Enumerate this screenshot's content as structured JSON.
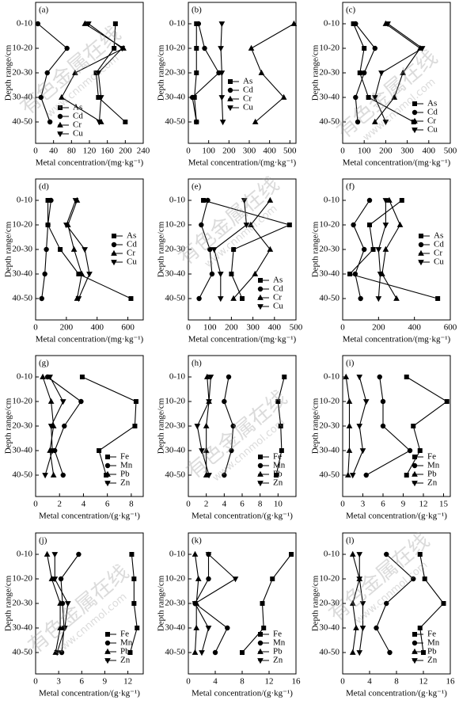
{
  "watermark": [
    "有色金属在线",
    "www.cnnmol.com"
  ],
  "chart_data": [
    {
      "type": "line",
      "panel": "(a)",
      "ylabel": "Depth range/cm",
      "xlabel": "Metal concentration/(mg·kg⁻¹)",
      "color": "#000000",
      "legend": "lower center",
      "categories": [
        "0-10",
        "10-20",
        "20-30",
        "30-40",
        "40-50"
      ],
      "xlim": [
        0,
        240
      ],
      "xticks": [
        0,
        40,
        80,
        120,
        160,
        200,
        240
      ],
      "series": [
        {
          "name": "As",
          "marker": "square",
          "values": [
            178,
            175,
            135,
            140,
            200
          ]
        },
        {
          "name": "Cd",
          "marker": "circle",
          "values": [
            5,
            70,
            26,
            12,
            32
          ]
        },
        {
          "name": "Cr",
          "marker": "triangle-up",
          "values": [
            110,
            196,
            88,
            58,
            146
          ]
        },
        {
          "name": "Cu",
          "marker": "triangle-down",
          "values": [
            118,
            193,
            140,
            146,
            142
          ]
        }
      ]
    },
    {
      "type": "line",
      "panel": "(b)",
      "ylabel": "Depth range/cm",
      "xlabel": "Metal concentration/(mg·kg⁻¹)",
      "color": "#000000",
      "legend": "center",
      "categories": [
        "0-10",
        "10-20",
        "20-30",
        "30-40",
        "40-50"
      ],
      "xlim": [
        0,
        530
      ],
      "xticks": [
        0,
        100,
        200,
        300,
        400,
        500
      ],
      "series": [
        {
          "name": "As",
          "marker": "square",
          "values": [
            40,
            40,
            40,
            30,
            40
          ]
        },
        {
          "name": "Cd",
          "marker": "circle",
          "values": [
            50,
            80,
            150,
            20,
            40
          ]
        },
        {
          "name": "Cr",
          "marker": "triangle-up",
          "values": [
            520,
            310,
            360,
            470,
            330
          ]
        },
        {
          "name": "Cu",
          "marker": "triangle-down",
          "values": [
            165,
            160,
            165,
            165,
            170
          ]
        }
      ]
    },
    {
      "type": "line",
      "panel": "(c)",
      "ylabel": "Depth range/cm",
      "xlabel": "Metal concentration/(mg·kg⁻¹)",
      "color": "#000000",
      "legend": "lower right",
      "categories": [
        "0-10",
        "10-20",
        "20-30",
        "30-40",
        "40-50"
      ],
      "xlim": [
        0,
        500
      ],
      "xticks": [
        0,
        100,
        200,
        300,
        400,
        500
      ],
      "series": [
        {
          "name": "As",
          "marker": "square",
          "values": [
            50,
            100,
            80,
            120,
            330
          ]
        },
        {
          "name": "Cd",
          "marker": "circle",
          "values": [
            60,
            150,
            100,
            60,
            70
          ]
        },
        {
          "name": "Cr",
          "marker": "triangle-up",
          "values": [
            200,
            360,
            280,
            240,
            150
          ]
        },
        {
          "name": "Cu",
          "marker": "triangle-down",
          "values": [
            210,
            370,
            180,
            150,
            200
          ]
        }
      ]
    },
    {
      "type": "line",
      "panel": "(d)",
      "ylabel": "Depth range/cm",
      "xlabel": "Metal concentration/(mg·kg⁻¹)",
      "color": "#000000",
      "legend": "center right",
      "categories": [
        "0-10",
        "10-20",
        "20-30",
        "30-40",
        "40-50"
      ],
      "xlim": [
        0,
        700
      ],
      "xticks": [
        0,
        200,
        400,
        600
      ],
      "series": [
        {
          "name": "As",
          "marker": "square",
          "values": [
            80,
            80,
            160,
            280,
            620
          ]
        },
        {
          "name": "Cd",
          "marker": "circle",
          "values": [
            100,
            80,
            70,
            60,
            40
          ]
        },
        {
          "name": "Cr",
          "marker": "triangle-up",
          "values": [
            270,
            210,
            250,
            300,
            270
          ]
        },
        {
          "name": "Cu",
          "marker": "triangle-down",
          "values": [
            260,
            200,
            320,
            350,
            280
          ]
        }
      ]
    },
    {
      "type": "line",
      "panel": "(e)",
      "ylabel": "Depth range/cm",
      "xlabel": "Metal concentration/(mg·kg⁻¹)",
      "color": "#000000",
      "legend": "lower right",
      "categories": [
        "0-10",
        "10-20",
        "20-30",
        "30-40",
        "40-50"
      ],
      "xlim": [
        0,
        500
      ],
      "xticks": [
        0,
        100,
        200,
        300,
        400,
        500
      ],
      "series": [
        {
          "name": "As",
          "marker": "square",
          "values": [
            70,
            470,
            210,
            200,
            250
          ]
        },
        {
          "name": "Cd",
          "marker": "circle",
          "values": [
            90,
            60,
            100,
            110,
            50
          ]
        },
        {
          "name": "Cr",
          "marker": "triangle-up",
          "values": [
            380,
            290,
            380,
            310,
            210
          ]
        },
        {
          "name": "Cu",
          "marker": "triangle-down",
          "values": [
            260,
            270,
            120,
            150,
            150
          ]
        }
      ]
    },
    {
      "type": "line",
      "panel": "(f)",
      "ylabel": "Depth range/cm",
      "xlabel": "Metal concentration/(mg·kg⁻¹)",
      "color": "#000000",
      "legend": "center right",
      "categories": [
        "0-10",
        "10-20",
        "20-30",
        "30-40",
        "40-50"
      ],
      "xlim": [
        0,
        600
      ],
      "xticks": [
        0,
        200,
        400,
        600
      ],
      "series": [
        {
          "name": "As",
          "marker": "square",
          "values": [
            330,
            150,
            170,
            40,
            530
          ]
        },
        {
          "name": "Cd",
          "marker": "circle",
          "values": [
            150,
            60,
            120,
            70,
            100
          ]
        },
        {
          "name": "Cr",
          "marker": "triangle-up",
          "values": [
            260,
            320,
            240,
            220,
            300
          ]
        },
        {
          "name": "Cu",
          "marker": "triangle-down",
          "values": [
            240,
            240,
            200,
            210,
            200
          ]
        }
      ]
    },
    {
      "type": "line",
      "panel": "(g)",
      "ylabel": "Depth range/cm",
      "xlabel": "Metal concentration/(g·kg⁻¹)",
      "color": "#000000",
      "legend": "lower right",
      "categories": [
        "0-10",
        "10-20",
        "20-30",
        "30-40",
        "40-50"
      ],
      "xlim": [
        0,
        9
      ],
      "xticks": [
        0,
        2,
        4,
        6,
        8
      ],
      "series": [
        {
          "name": "Fe",
          "marker": "square",
          "values": [
            3.9,
            8.4,
            8.3,
            5.3,
            5.9
          ]
        },
        {
          "name": "Mn",
          "marker": "circle",
          "values": [
            1.0,
            3.8,
            2.4,
            1.6,
            2.3
          ]
        },
        {
          "name": "Pb",
          "marker": "triangle-up",
          "values": [
            0.6,
            1.3,
            1.5,
            1.2,
            1.5
          ]
        },
        {
          "name": "Zn",
          "marker": "triangle-down",
          "values": [
            1.2,
            2.3,
            1.3,
            1.4,
            0.8
          ]
        }
      ]
    },
    {
      "type": "line",
      "panel": "(h)",
      "ylabel": "Depth range/cm",
      "xlabel": "Metal concentration/(g·kg⁻¹)",
      "color": "#000000",
      "legend": "lower right",
      "categories": [
        "0-10",
        "10-20",
        "20-30",
        "30-40",
        "40-50"
      ],
      "xlim": [
        0,
        12
      ],
      "xticks": [
        0,
        2,
        4,
        6,
        8,
        10
      ],
      "series": [
        {
          "name": "Fe",
          "marker": "square",
          "values": [
            10.7,
            10,
            10.3,
            10.4,
            9.8
          ]
        },
        {
          "name": "Mn",
          "marker": "circle",
          "values": [
            4.5,
            4,
            5,
            4.8,
            4
          ]
        },
        {
          "name": "Pb",
          "marker": "triangle-up",
          "values": [
            2.1,
            2.3,
            2,
            2,
            2
          ]
        },
        {
          "name": "Zn",
          "marker": "triangle-down",
          "values": [
            2.5,
            2.3,
            1,
            1.5,
            2.3
          ]
        }
      ]
    },
    {
      "type": "line",
      "panel": "(i)",
      "ylabel": "Depth range/cm",
      "xlabel": "Metal concentration/(g·kg⁻¹)",
      "color": "#000000",
      "legend": "lower right",
      "categories": [
        "0-10",
        "10-20",
        "20-30",
        "30-40",
        "40-50"
      ],
      "xlim": [
        0,
        16
      ],
      "xticks": [
        0,
        3,
        6,
        9,
        12,
        15
      ],
      "series": [
        {
          "name": "Fe",
          "marker": "square",
          "values": [
            9.5,
            15.5,
            10.5,
            11.5,
            9.5
          ]
        },
        {
          "name": "Mn",
          "marker": "circle",
          "values": [
            5.5,
            6,
            6,
            10,
            3.5
          ]
        },
        {
          "name": "Pb",
          "marker": "triangle-up",
          "values": [
            0.5,
            1,
            1,
            1,
            0.8
          ]
        },
        {
          "name": "Zn",
          "marker": "triangle-down",
          "values": [
            2.5,
            3.5,
            2.5,
            3,
            1.5
          ]
        }
      ]
    },
    {
      "type": "line",
      "panel": "(j)",
      "ylabel": "Depth range/cm",
      "xlabel": "Metal concentration/(g·kg⁻¹)",
      "color": "#000000",
      "legend": "lower right",
      "categories": [
        "0-10",
        "10-20",
        "20-30",
        "30-40",
        "40-50"
      ],
      "xlim": [
        0,
        14
      ],
      "xticks": [
        0,
        3,
        6,
        9,
        12
      ],
      "series": [
        {
          "name": "Fe",
          "marker": "square",
          "values": [
            12.5,
            12.8,
            12.8,
            13.2,
            12.3
          ]
        },
        {
          "name": "Mn",
          "marker": "circle",
          "values": [
            5.6,
            3.3,
            3.5,
            3.7,
            3.4
          ]
        },
        {
          "name": "Pb",
          "marker": "triangle-up",
          "values": [
            1.5,
            2.1,
            3.2,
            3.2,
            2.6
          ]
        },
        {
          "name": "Zn",
          "marker": "triangle-down",
          "values": [
            2.5,
            2.5,
            4.2,
            3.8,
            2.8
          ]
        }
      ]
    },
    {
      "type": "line",
      "panel": "(k)",
      "ylabel": "Depth range/cm",
      "xlabel": "Metal concentration/(g·kg⁻¹)",
      "color": "#000000",
      "legend": "lower right",
      "categories": [
        "0-10",
        "10-20",
        "20-30",
        "30-40",
        "40-50"
      ],
      "xlim": [
        0,
        16
      ],
      "xticks": [
        0,
        4,
        8,
        12,
        16
      ],
      "series": [
        {
          "name": "Fe",
          "marker": "square",
          "values": [
            15.3,
            12.5,
            11,
            11.2,
            8
          ]
        },
        {
          "name": "Mn",
          "marker": "circle",
          "values": [
            3,
            3,
            1,
            5.8,
            4
          ]
        },
        {
          "name": "Pb",
          "marker": "triangle-up",
          "values": [
            1,
            1.5,
            1.2,
            1.2,
            1
          ]
        },
        {
          "name": "Zn",
          "marker": "triangle-down",
          "values": [
            3,
            7,
            1,
            3,
            2
          ]
        }
      ]
    },
    {
      "type": "line",
      "panel": "(l)",
      "ylabel": "Depth range/cm",
      "xlabel": "Metal concentration/(g·kg⁻¹)",
      "color": "#000000",
      "legend": "lower right",
      "categories": [
        "0-10",
        "10-20",
        "20-30",
        "30-40",
        "40-50"
      ],
      "xlim": [
        0,
        16
      ],
      "xticks": [
        0,
        4,
        8,
        12,
        16
      ],
      "series": [
        {
          "name": "Fe",
          "marker": "square",
          "values": [
            11.5,
            12.2,
            15,
            11.5,
            12
          ]
        },
        {
          "name": "Mn",
          "marker": "circle",
          "values": [
            6.5,
            10.5,
            6.5,
            5,
            7
          ]
        },
        {
          "name": "Pb",
          "marker": "triangle-up",
          "values": [
            1.5,
            2.5,
            1.5,
            2,
            1.5
          ]
        },
        {
          "name": "Zn",
          "marker": "triangle-down",
          "values": [
            2.5,
            2.5,
            3,
            3,
            2.5
          ]
        }
      ]
    }
  ]
}
